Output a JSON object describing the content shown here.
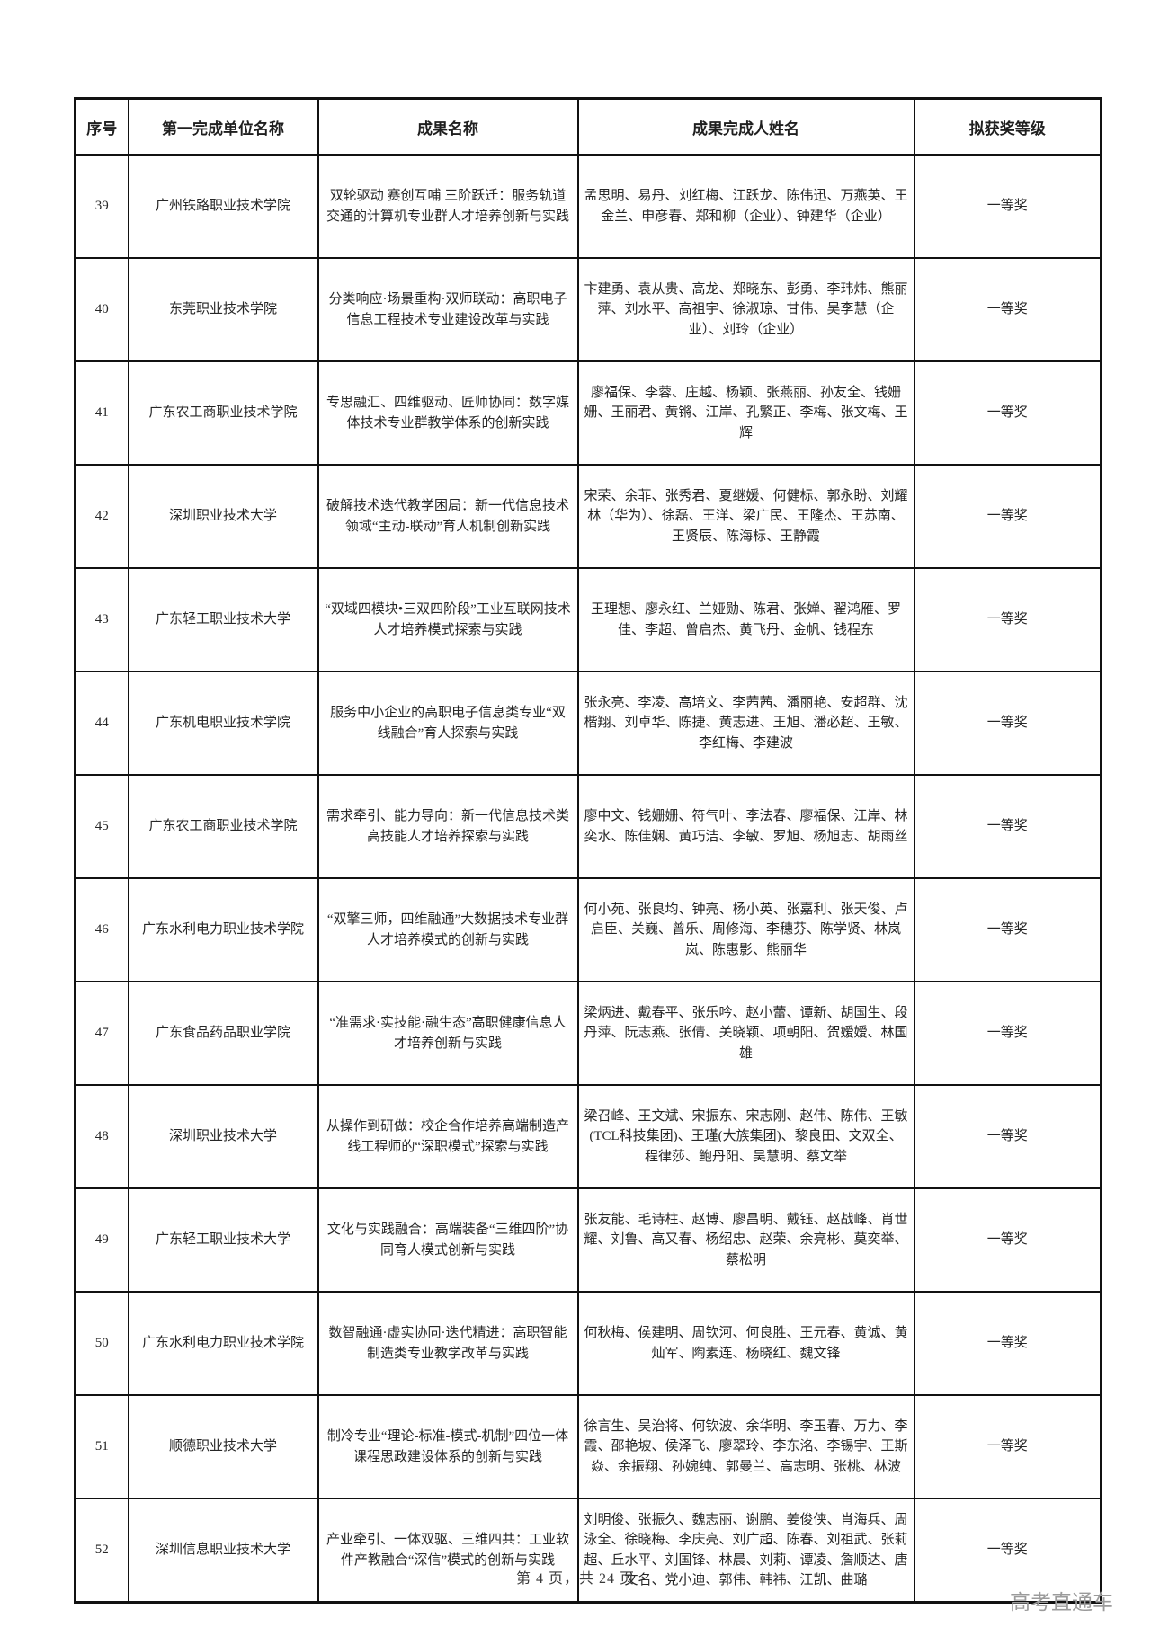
{
  "page": {
    "footer": "第 4 页，共 24 页",
    "watermark": "高考直通车"
  },
  "table": {
    "headers": [
      "序号",
      "第一完成单位名称",
      "成果名称",
      "成果完成人姓名",
      "拟获奖等级"
    ],
    "rows": [
      {
        "no": "39",
        "unit": "广州铁路职业技术学院",
        "achievement": "双轮驱动 赛创互哺 三阶跃迁：服务轨道交通的计算机专业群人才培养创新与实践",
        "people": "孟思明、易丹、刘红梅、江跃龙、陈伟迅、万燕英、王金兰、申彦春、郑和柳（企业）、钟建华（企业）",
        "award": "一等奖"
      },
      {
        "no": "40",
        "unit": "东莞职业技术学院",
        "achievement": "分类响应·场景重构·双师联动：高职电子信息工程技术专业建设改革与实践",
        "people": "卞建勇、袁从贵、高龙、郑晓东、彭勇、李玮炜、熊丽萍、刘水平、高祖宇、徐淑琼、甘伟、吴李慧（企业）、刘玲（企业）",
        "award": "一等奖"
      },
      {
        "no": "41",
        "unit": "广东农工商职业技术学院",
        "achievement": "专思融汇、四维驱动、匠师协同：数字媒体技术专业群教学体系的创新实践",
        "people": "廖福保、李蓉、庄越、杨颖、张燕丽、孙友全、钱姗姗、王丽君、黄锵、江岸、孔繁正、李梅、张文梅、王辉",
        "award": "一等奖"
      },
      {
        "no": "42",
        "unit": "深圳职业技术大学",
        "achievement": "破解技术迭代教学困局：新一代信息技术领域“主动-联动”育人机制创新实践",
        "people": "宋荣、余菲、张秀君、夏继媛、何健标、郭永盼、刘耀林（华为）、徐磊、王洋、梁广民、王隆杰、王苏南、王贤辰、陈海标、王静霞",
        "award": "一等奖"
      },
      {
        "no": "43",
        "unit": "广东轻工职业技术大学",
        "achievement": "“双域四模块•三双四阶段”工业互联网技术人才培养模式探索与实践",
        "people": "王理想、廖永红、兰娅勋、陈君、张婵、翟鸿雁、罗佳、李超、曾启杰、黄飞丹、金帆、钱程东",
        "award": "一等奖"
      },
      {
        "no": "44",
        "unit": "广东机电职业技术学院",
        "achievement": "服务中小企业的高职电子信息类专业“双线融合”育人探索与实践",
        "people": "张永亮、李凌、高培文、李茜茜、潘丽艳、安超群、沈楷翔、刘卓华、陈捷、黄志进、王旭、潘必超、王敏、李红梅、李建波",
        "award": "一等奖"
      },
      {
        "no": "45",
        "unit": "广东农工商职业技术学院",
        "achievement": "需求牵引、能力导向：新一代信息技术类高技能人才培养探索与实践",
        "people": "廖中文、钱姗姗、符气叶、李法春、廖福保、江岸、林奕水、陈佳娴、黄巧洁、李敏、罗旭、杨旭志、胡雨丝",
        "award": "一等奖"
      },
      {
        "no": "46",
        "unit": "广东水利电力职业技术学院",
        "achievement": "“双擎三师，四维融通”大数据技术专业群人才培养模式的创新与实践",
        "people": "何小苑、张良均、钟亮、杨小英、张嘉利、张天俊、卢启臣、关巍、曾乐、周修海、李穗芬、陈学贤、林岚岚、陈惠影、熊丽华",
        "award": "一等奖"
      },
      {
        "no": "47",
        "unit": "广东食品药品职业学院",
        "achievement": "“准需求·实技能·融生态”高职健康信息人才培养创新与实践",
        "people": "梁炳进、戴春平、张乐吟、赵小蕾、谭新、胡国生、段丹萍、阮志燕、张倩、关晓颖、项朝阳、贺嫒嫒、林国雄",
        "award": "一等奖"
      },
      {
        "no": "48",
        "unit": "深圳职业技术大学",
        "achievement": "从操作到研做：校企合作培养高端制造产线工程师的“深职模式”探索与实践",
        "people": "梁召峰、王文斌、宋振东、宋志刚、赵伟、陈伟、王敏(TCL科技集团)、王瑾(大族集团)、黎良田、文双全、程律莎、鲍丹阳、吴慧明、蔡文举",
        "award": "一等奖"
      },
      {
        "no": "49",
        "unit": "广东轻工职业技术大学",
        "achievement": "文化与实践融合：高端装备“三维四阶”协同育人模式创新与实践",
        "people": "张友能、毛诗柱、赵博、廖昌明、戴钰、赵战峰、肖世耀、刘鲁、高又春、杨绍忠、赵荣、余亮彬、莫奕举、蔡松明",
        "award": "一等奖"
      },
      {
        "no": "50",
        "unit": "广东水利电力职业技术学院",
        "achievement": "数智融通·虚实协同·迭代精进：高职智能制造类专业教学改革与实践",
        "people": "何秋梅、侯建明、周钦河、何良胜、王元春、黄诚、黄灿军、陶素连、杨晓红、魏文锋",
        "award": "一等奖"
      },
      {
        "no": "51",
        "unit": "顺德职业技术大学",
        "achievement": "制冷专业“理论-标准-模式-机制”四位一体课程思政建设体系的创新与实践",
        "people": "徐言生、吴治将、何钦波、余华明、李玉春、万力、李霞、邵艳坡、侯泽飞、廖翠玲、李东洺、李锡宇、王斯焱、余振翔、孙婉纯、郭曼兰、高志明、张桃、林波",
        "award": "一等奖"
      },
      {
        "no": "52",
        "unit": "深圳信息职业技术大学",
        "achievement": "产业牵引、一体双驱、三维四共：工业软件产教融合“深信”模式的创新与实践",
        "people": "刘明俊、张振久、魏志丽、谢鹏、姜俊侠、肖海兵、周泳全、徐晓梅、李庆亮、刘广超、陈春、刘祖武、张莉超、丘水平、刘国锋、林晨、刘莉、谭凌、詹顺达、唐文名、党小迪、郭伟、韩祎、江凯、曲璐",
        "award": "一等奖"
      }
    ]
  }
}
